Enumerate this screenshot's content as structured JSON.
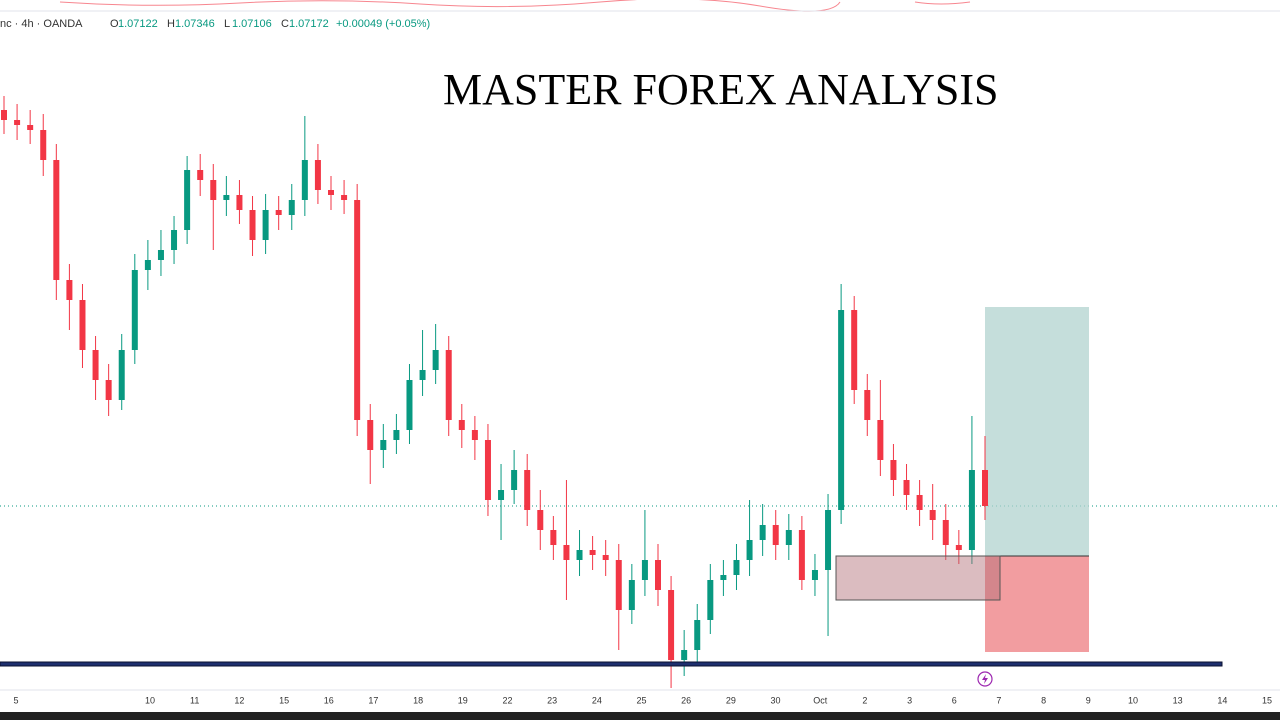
{
  "header": {
    "symbol": "nc · 4h · OANDA",
    "ohlc": [
      {
        "label": "O",
        "value": "1.07122"
      },
      {
        "label": "H",
        "value": "1.07346"
      },
      {
        "label": "L",
        "value": "1.07106"
      },
      {
        "label": "C",
        "value": "1.07172"
      }
    ],
    "change": "+0.00049 (+0.05%)"
  },
  "chart_data": {
    "type": "candlestick",
    "title": "MASTER FOREX ANALYSIS",
    "up_color": "#089981",
    "down_color": "#f23645",
    "ylim": [
      1.06,
      1.096
    ],
    "x_labels": [
      "5",
      null,
      null,
      "10",
      "11",
      "12",
      "15",
      "16",
      "17",
      "18",
      "19",
      "22",
      "23",
      "24",
      "25",
      "26",
      "29",
      "30",
      "Oct",
      "2",
      "3",
      "6",
      "7",
      "8",
      "9",
      "10",
      "13",
      "14",
      "15"
    ],
    "open": [
      1.0905,
      1.09,
      1.08975,
      1.0895,
      1.088,
      1.082,
      1.081,
      1.0785,
      1.077,
      1.076,
      1.0785,
      1.0825,
      1.083,
      1.0835,
      1.0845,
      1.0875,
      1.087,
      1.086,
      1.08625,
      1.0855,
      1.084,
      1.0855,
      1.08525,
      1.086,
      1.088,
      1.0865,
      1.08625,
      1.086,
      1.075,
      1.0735,
      1.074,
      1.0745,
      1.077,
      1.0775,
      1.0785,
      1.075,
      1.0745,
      1.074,
      1.071,
      1.0715,
      1.0725,
      1.0705,
      1.0695,
      1.06875,
      1.068,
      1.0685,
      1.06825,
      1.068,
      1.0655,
      1.067,
      1.068,
      1.0665,
      1.063,
      1.0635,
      1.065,
      1.067,
      1.06725,
      1.068,
      1.069,
      1.06975,
      1.06875,
      1.0695,
      1.067,
      1.0675,
      1.0705,
      1.0805,
      1.0765,
      1.075,
      1.073,
      1.072,
      1.07125,
      1.0705,
      1.07,
      1.06875,
      1.0685,
      1.0725
    ],
    "high": [
      1.0912,
      1.0908,
      1.0905,
      1.0903,
      1.0888,
      1.0828,
      1.0818,
      1.0792,
      1.0778,
      1.0793,
      1.0833,
      1.084,
      1.0845,
      1.0852,
      1.0882,
      1.0883,
      1.0878,
      1.0872,
      1.087,
      1.0862,
      1.0863,
      1.0862,
      1.0868,
      1.0902,
      1.0888,
      1.0872,
      1.087,
      1.0868,
      1.0758,
      1.0748,
      1.0753,
      1.0778,
      1.0795,
      1.0798,
      1.0792,
      1.0758,
      1.0752,
      1.0748,
      1.0728,
      1.0735,
      1.0733,
      1.0715,
      1.0702,
      1.072,
      1.0695,
      1.0692,
      1.069,
      1.0688,
      1.0678,
      1.0705,
      1.0688,
      1.0672,
      1.0645,
      1.0658,
      1.0678,
      1.068,
      1.0688,
      1.071,
      1.0708,
      1.0705,
      1.0703,
      1.0702,
      1.0683,
      1.0713,
      1.0818,
      1.0812,
      1.0773,
      1.077,
      1.0738,
      1.0728,
      1.072,
      1.0718,
      1.0708,
      1.0695,
      1.0752,
      1.0742
    ],
    "low": [
      1.0893,
      1.089,
      1.0888,
      1.0872,
      1.081,
      1.0795,
      1.0776,
      1.076,
      1.0752,
      1.0755,
      1.0778,
      1.0815,
      1.0822,
      1.0828,
      1.0838,
      1.0862,
      1.0835,
      1.0852,
      1.0848,
      1.0832,
      1.0833,
      1.0845,
      1.0845,
      1.0852,
      1.0858,
      1.0855,
      1.0853,
      1.0742,
      1.0718,
      1.0726,
      1.0733,
      1.0738,
      1.0762,
      1.0768,
      1.0742,
      1.0736,
      1.073,
      1.0702,
      1.069,
      1.0708,
      1.0697,
      1.0685,
      1.068,
      1.066,
      1.0672,
      1.0675,
      1.0672,
      1.0635,
      1.0648,
      1.0662,
      1.0657,
      1.0616,
      1.0622,
      1.0628,
      1.0643,
      1.0662,
      1.0665,
      1.0672,
      1.0682,
      1.068,
      1.068,
      1.0665,
      1.0662,
      1.0642,
      1.0698,
      1.0758,
      1.0742,
      1.0722,
      1.0712,
      1.0705,
      1.0697,
      1.069,
      1.068,
      1.0678,
      1.0678,
      1.07
    ],
    "close": [
      1.09,
      1.08975,
      1.0895,
      1.088,
      1.082,
      1.081,
      1.0785,
      1.077,
      1.076,
      1.0785,
      1.0825,
      1.083,
      1.0835,
      1.0845,
      1.0875,
      1.087,
      1.086,
      1.08625,
      1.0855,
      1.084,
      1.0855,
      1.08525,
      1.086,
      1.088,
      1.0865,
      1.08625,
      1.086,
      1.075,
      1.0735,
      1.074,
      1.0745,
      1.077,
      1.0775,
      1.0785,
      1.075,
      1.0745,
      1.074,
      1.071,
      1.0715,
      1.0725,
      1.0705,
      1.0695,
      1.06875,
      1.068,
      1.0685,
      1.06825,
      1.068,
      1.0655,
      1.067,
      1.068,
      1.0665,
      1.063,
      1.0635,
      1.065,
      1.067,
      1.06725,
      1.068,
      1.069,
      1.06975,
      1.06875,
      1.0695,
      1.067,
      1.0675,
      1.0705,
      1.0805,
      1.0765,
      1.075,
      1.073,
      1.072,
      1.07125,
      1.0705,
      1.07,
      1.06875,
      1.0685,
      1.0725,
      1.0707
    ]
  }
}
